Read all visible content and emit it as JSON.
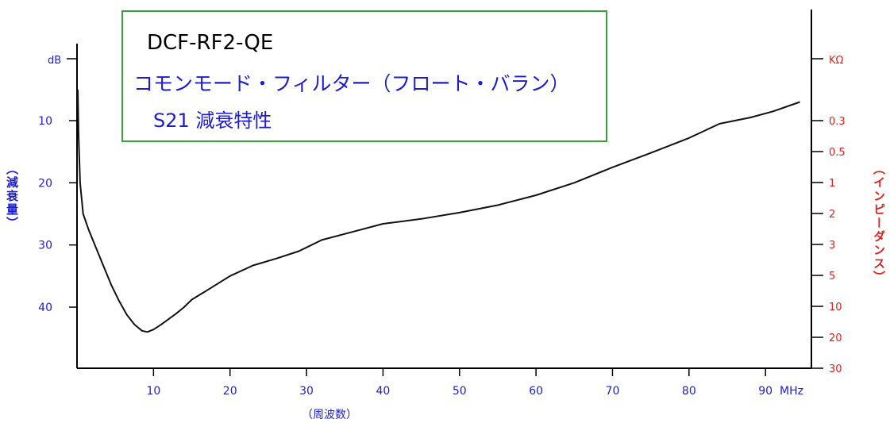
{
  "chart_data": {
    "type": "line",
    "title": "DCF-RF2-QE",
    "subtitle_line1": "コモンモード・フィルター（フロート・バラン）",
    "subtitle_line2": "S21 減衰特性",
    "xlabel": "（周波数）",
    "ylabel_left": "（減衰量）",
    "ylabel_right": "（インピーダンス）",
    "x_ticks": [
      "10",
      "20",
      "30",
      "40",
      "50",
      "60",
      "70",
      "80",
      "90"
    ],
    "x_unit": "MHz",
    "y_left_unit": "dB",
    "y_left_ticks": [
      "10",
      "20",
      "30",
      "40"
    ],
    "y_right_unit": "KΩ",
    "y_right_ticks": [
      "0.3",
      "0.5",
      "1",
      "2",
      "3",
      "5",
      "10",
      "20",
      "30"
    ],
    "xlim": [
      0,
      96
    ],
    "ylim": [
      0,
      49
    ],
    "grid": false,
    "legend": "none",
    "colors": {
      "title": "#000000",
      "subtitle": "#1c1cd8",
      "left_axis_labels": "#1c1cd8",
      "right_axis_labels": "#e0201c",
      "title_box_border": "#3aa03a",
      "curve": "#111111",
      "axes": "#000000"
    },
    "series": [
      {
        "values": [
          [
            0.1,
            5
          ],
          [
            0.2,
            12
          ],
          [
            0.4,
            20
          ],
          [
            0.8,
            25
          ],
          [
            1.5,
            27.5
          ],
          [
            2.5,
            30.5
          ],
          [
            3.5,
            33.5
          ],
          [
            4.5,
            36.5
          ],
          [
            5.5,
            39
          ],
          [
            6.5,
            41.2
          ],
          [
            7.5,
            42.8
          ],
          [
            8.5,
            43.8
          ],
          [
            9.2,
            44
          ],
          [
            10,
            43.6
          ],
          [
            11,
            42.8
          ],
          [
            12,
            41.9
          ],
          [
            13,
            41
          ],
          [
            14,
            40
          ],
          [
            15,
            38.8
          ],
          [
            17,
            37.3
          ],
          [
            20,
            35
          ],
          [
            23,
            33.3
          ],
          [
            26,
            32.2
          ],
          [
            29,
            31
          ],
          [
            32,
            29.2
          ],
          [
            36,
            27.9
          ],
          [
            40,
            26.6
          ],
          [
            45,
            25.8
          ],
          [
            50,
            24.8
          ],
          [
            55,
            23.6
          ],
          [
            60,
            22
          ],
          [
            65,
            20
          ],
          [
            70,
            17.5
          ],
          [
            75,
            15.2
          ],
          [
            80,
            12.8
          ],
          [
            84,
            10.5
          ],
          [
            88,
            9.5
          ],
          [
            91,
            8.5
          ],
          [
            94.5,
            7
          ]
        ]
      }
    ]
  }
}
